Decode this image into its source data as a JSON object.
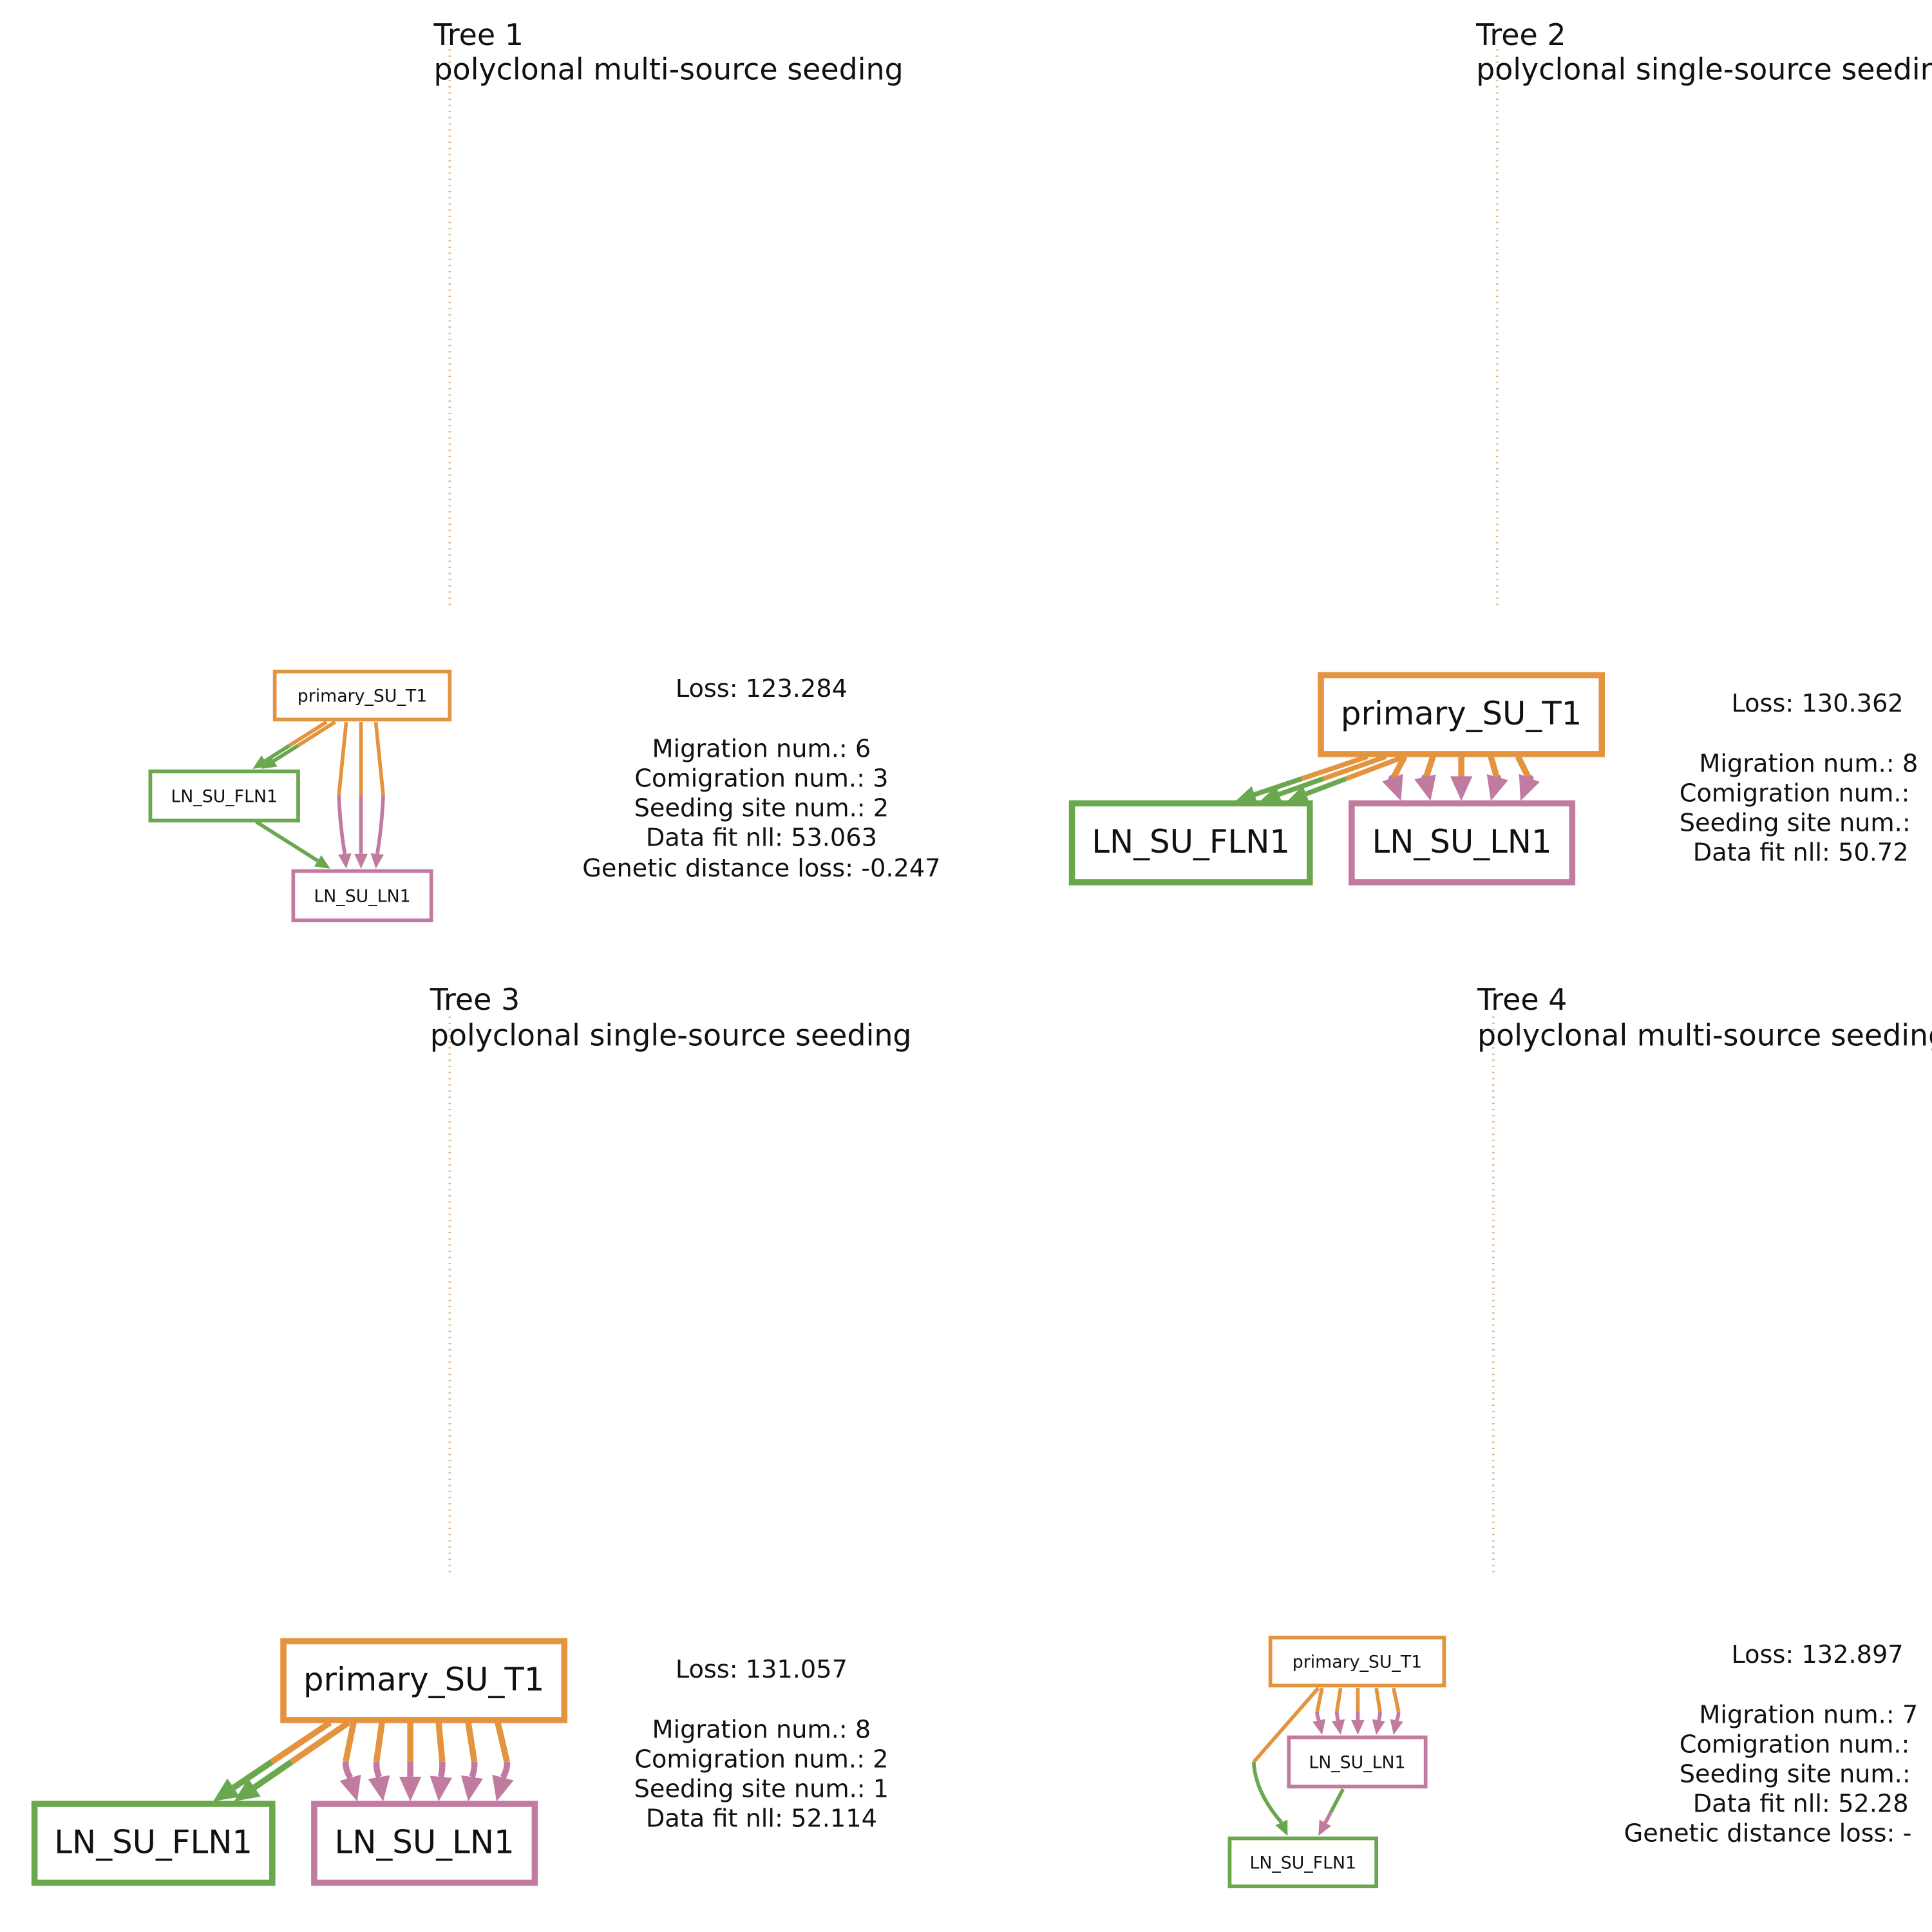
{
  "trees": [
    {
      "title": "Tree 1",
      "subtitle": "polyclonal multi-source seeding",
      "nodes": [
        {
          "label": "primary_SU_T1"
        },
        {
          "label": "LN_SU_FLN1"
        },
        {
          "label": "LN_SU_LN1"
        }
      ],
      "stats": [
        "Loss: 123.284",
        "Migration num.: 6",
        "Comigration num.: 3",
        "Seeding site num.: 2",
        "Data fit nll: 53.063",
        "Genetic distance loss: -0.247"
      ]
    },
    {
      "title": "Tree 2",
      "subtitle": "polyclonal single-source seeding",
      "nodes": [
        {
          "label": "primary_SU_T1"
        },
        {
          "label": "LN_SU_FLN1"
        },
        {
          "label": "LN_SU_LN1"
        }
      ],
      "stats": [
        "Loss: 130.362",
        "Migration num.: 8",
        "Comigration num.:",
        "Seeding site num.:",
        "Data fit nll: 50.72"
      ]
    },
    {
      "title": "Tree 3",
      "subtitle": "polyclonal single-source seeding",
      "nodes": [
        {
          "label": "primary_SU_T1"
        },
        {
          "label": "LN_SU_FLN1"
        },
        {
          "label": "LN_SU_LN1"
        }
      ],
      "stats": [
        "Loss: 131.057",
        "Migration num.: 8",
        "Comigration num.: 2",
        "Seeding site num.: 1",
        "Data fit nll: 52.114"
      ]
    },
    {
      "title": "Tree 4",
      "subtitle": "polyclonal multi-source seeding",
      "nodes": [
        {
          "label": "primary_SU_T1"
        },
        {
          "label": "LN_SU_FLN1"
        },
        {
          "label": "LN_SU_LN1"
        }
      ],
      "stats": [
        "Loss: 132.897",
        "Migration num.: 7",
        "Comigration num.:",
        "Seeding site num.:",
        "Data fit nll: 52.28",
        "Genetic distance loss: -"
      ]
    }
  ]
}
